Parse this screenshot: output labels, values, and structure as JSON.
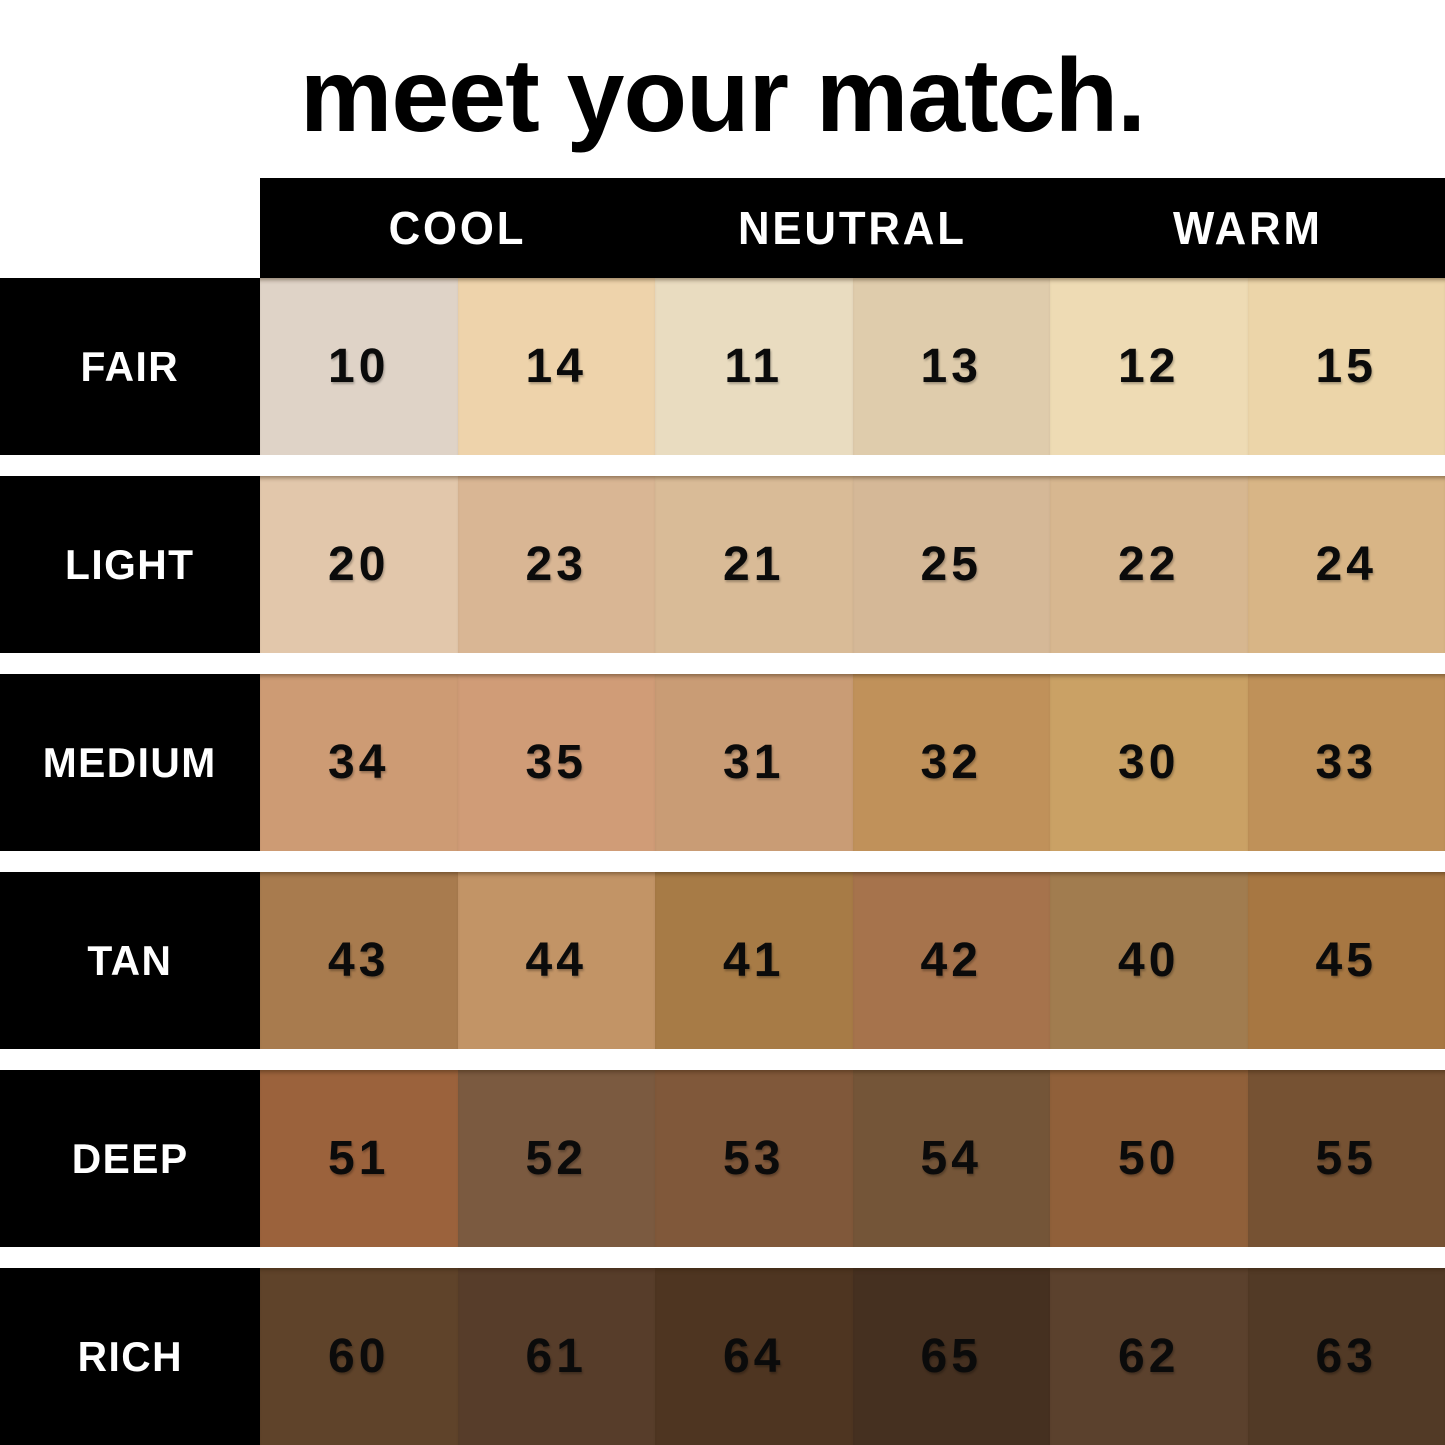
{
  "title": "meet your match.",
  "colors": {
    "background": "#ffffff",
    "band": "#000000",
    "band_text": "#ffffff",
    "number_text": "#0b0b0b"
  },
  "chart_data": {
    "type": "table",
    "title": "meet your match.",
    "columns": [
      "COOL",
      "NEUTRAL",
      "WARM"
    ],
    "column_note": "each undertone column spans two swatch cells",
    "rows": [
      {
        "label": "FAIR",
        "shades": [
          {
            "num": "10",
            "color": "#dfd3c7"
          },
          {
            "num": "14",
            "color": "#eed3ab"
          },
          {
            "num": "11",
            "color": "#e9dcc0"
          },
          {
            "num": "13",
            "color": "#dfccac"
          },
          {
            "num": "12",
            "color": "#eedbb4"
          },
          {
            "num": "15",
            "color": "#ecd5a9"
          }
        ]
      },
      {
        "label": "LIGHT",
        "shades": [
          {
            "num": "20",
            "color": "#e2c7ab"
          },
          {
            "num": "23",
            "color": "#d9b694"
          },
          {
            "num": "21",
            "color": "#d9bb97"
          },
          {
            "num": "25",
            "color": "#d5b897"
          },
          {
            "num": "22",
            "color": "#d7b790"
          },
          {
            "num": "24",
            "color": "#d8b586"
          }
        ]
      },
      {
        "label": "MEDIUM",
        "shades": [
          {
            "num": "34",
            "color": "#cd9b74"
          },
          {
            "num": "35",
            "color": "#d09c77"
          },
          {
            "num": "31",
            "color": "#c99c75"
          },
          {
            "num": "32",
            "color": "#c0915a"
          },
          {
            "num": "30",
            "color": "#caa165"
          },
          {
            "num": "33",
            "color": "#bf9159"
          }
        ]
      },
      {
        "label": "TAN",
        "shades": [
          {
            "num": "43",
            "color": "#a87b4e"
          },
          {
            "num": "44",
            "color": "#c29466"
          },
          {
            "num": "41",
            "color": "#a77b46"
          },
          {
            "num": "42",
            "color": "#a6734c"
          },
          {
            "num": "40",
            "color": "#a17c4f"
          },
          {
            "num": "45",
            "color": "#a77742"
          }
        ]
      },
      {
        "label": "DEEP",
        "shades": [
          {
            "num": "51",
            "color": "#9b623c"
          },
          {
            "num": "52",
            "color": "#7b5a40"
          },
          {
            "num": "53",
            "color": "#80583a"
          },
          {
            "num": "54",
            "color": "#745538"
          },
          {
            "num": "50",
            "color": "#90603a"
          },
          {
            "num": "55",
            "color": "#765233"
          }
        ]
      },
      {
        "label": "RICH",
        "shades": [
          {
            "num": "60",
            "color": "#5f432a"
          },
          {
            "num": "61",
            "color": "#573d2a"
          },
          {
            "num": "64",
            "color": "#4e3521"
          },
          {
            "num": "65",
            "color": "#453020"
          },
          {
            "num": "62",
            "color": "#5b412d"
          },
          {
            "num": "63",
            "color": "#523a26"
          }
        ]
      }
    ]
  }
}
